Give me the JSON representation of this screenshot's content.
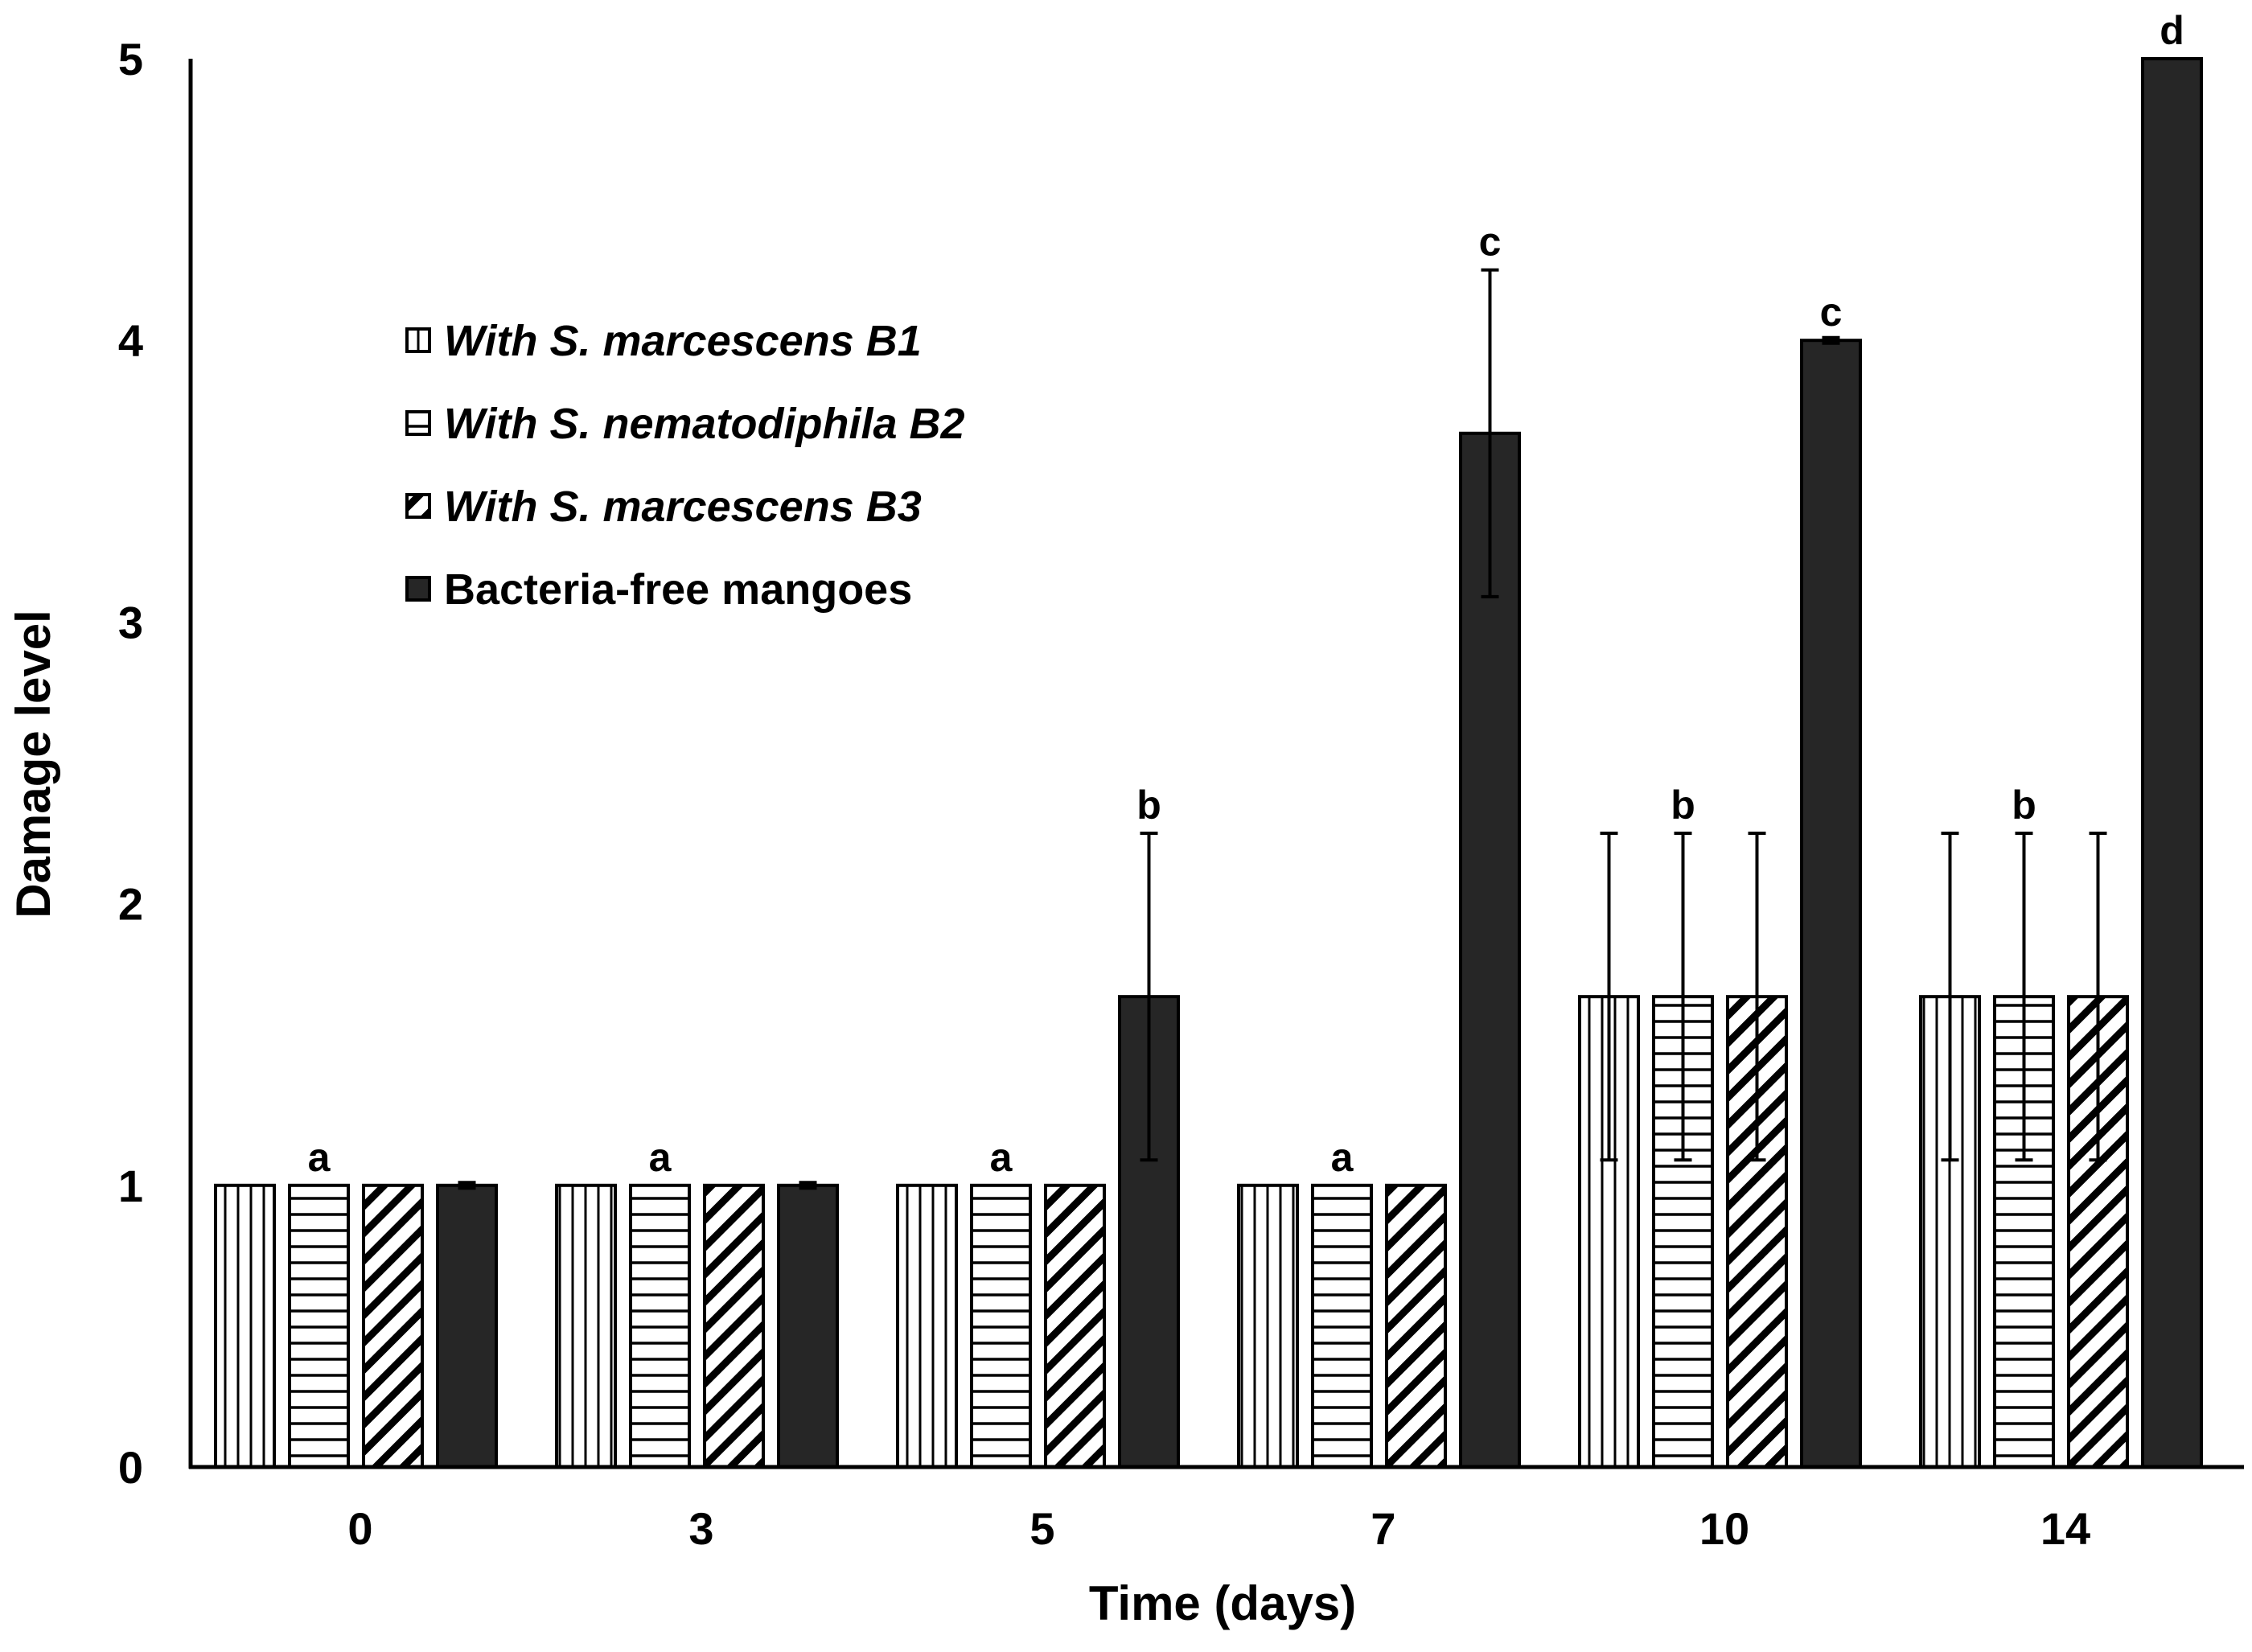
{
  "chart_data": {
    "type": "bar",
    "title": "",
    "xlabel": "Time (days)",
    "ylabel": "Damage level",
    "ylim": [
      0,
      5
    ],
    "yticks": [
      "0",
      "1",
      "2",
      "3",
      "4",
      "5"
    ],
    "categories": [
      "0",
      "3",
      "5",
      "7",
      "10",
      "14"
    ],
    "legend_position": "upper-left",
    "series": [
      {
        "name": "With S. marcescens B1",
        "italic": true,
        "pattern": "vertical",
        "values": [
          1,
          1,
          1,
          1,
          1.67,
          1.67
        ],
        "errors": [
          0,
          0,
          0,
          0,
          0.58,
          0.58
        ]
      },
      {
        "name": "With S. nematodiphila B2",
        "italic": true,
        "pattern": "horizontal",
        "values": [
          1,
          1,
          1,
          1,
          1.67,
          1.67
        ],
        "errors": [
          0,
          0,
          0,
          0,
          0.58,
          0.58
        ]
      },
      {
        "name": "With S. marcescens B3",
        "italic": true,
        "pattern": "diagonal",
        "values": [
          1,
          1,
          1,
          1,
          1.67,
          1.67
        ],
        "errors": [
          0,
          0,
          0,
          0,
          0.58,
          0.58
        ]
      },
      {
        "name": "Bacteria-free mangoes",
        "italic": false,
        "pattern": "solid",
        "values": [
          1,
          1,
          1.67,
          3.67,
          4,
          5
        ],
        "errors": [
          0.01,
          0.01,
          0.58,
          0.58,
          0.01,
          0
        ]
      }
    ],
    "annotations": [
      {
        "category": "0",
        "text": "a",
        "above_value": 1
      },
      {
        "category": "3",
        "text": "a",
        "above_value": 1
      },
      {
        "category": "5",
        "text": "a",
        "above_value": 1
      },
      {
        "category": "5",
        "text": "b",
        "above_value": 2.25
      },
      {
        "category": "7",
        "text": "a",
        "above_value": 1
      },
      {
        "category": "7",
        "text": "c",
        "above_value": 4.25
      },
      {
        "category": "10",
        "text": "b",
        "above_value": 2.25
      },
      {
        "category": "10",
        "text": "c",
        "above_value": 4
      },
      {
        "category": "14",
        "text": "b",
        "above_value": 2.25
      },
      {
        "category": "14",
        "text": "d",
        "above_value": 5
      }
    ],
    "colors": {
      "ink": "#000000",
      "solid_fill": "#262626",
      "background": "#ffffff"
    }
  }
}
